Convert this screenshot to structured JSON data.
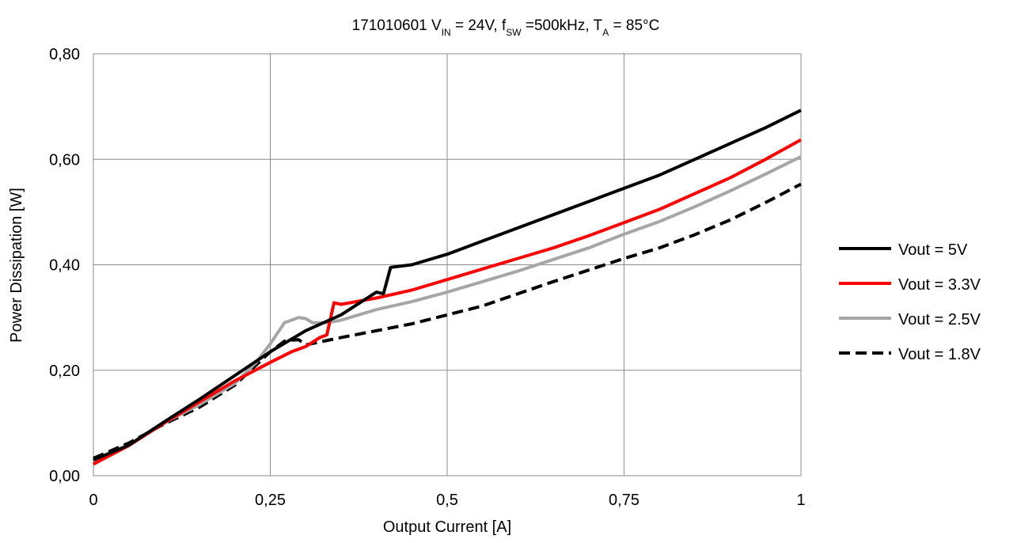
{
  "chart_data": {
    "type": "line",
    "title": {
      "prefix": "171010601   V",
      "vin_sub": "IN",
      "mid1": " = 24V, f",
      "fsw_sub": "SW",
      "mid2": " =500kHz, T",
      "ta_sub": "A",
      "suffix": " = 85°C"
    },
    "xlabel": "Output Current [A]",
    "ylabel": "Power Dissipation [W]",
    "xlim": [
      0,
      1
    ],
    "ylim": [
      0,
      0.8
    ],
    "x_ticks": [
      0,
      0.25,
      0.5,
      0.75,
      1
    ],
    "x_tick_labels": [
      "0",
      "0,25",
      "0,5",
      "0,75",
      "1"
    ],
    "y_ticks": [
      0,
      0.2,
      0.4,
      0.6,
      0.8
    ],
    "y_tick_labels": [
      "0,00",
      "0,20",
      "0,40",
      "0,60",
      "0,80"
    ],
    "grid": true,
    "legend_position": "right",
    "series": [
      {
        "name": "Vout = 5V",
        "color": "#000000",
        "dash": "solid",
        "x": [
          0,
          0.05,
          0.1,
          0.15,
          0.2,
          0.25,
          0.3,
          0.35,
          0.4,
          0.41,
          0.42,
          0.45,
          0.5,
          0.55,
          0.6,
          0.65,
          0.7,
          0.75,
          0.8,
          0.85,
          0.9,
          0.95,
          1.0
        ],
        "y": [
          0.03,
          0.058,
          0.102,
          0.145,
          0.19,
          0.235,
          0.275,
          0.305,
          0.348,
          0.345,
          0.395,
          0.4,
          0.42,
          0.445,
          0.47,
          0.495,
          0.52,
          0.545,
          0.57,
          0.6,
          0.63,
          0.66,
          0.693
        ]
      },
      {
        "name": "Vout = 3.3V",
        "color": "#ff0000",
        "dash": "solid",
        "x": [
          0,
          0.05,
          0.1,
          0.15,
          0.2,
          0.25,
          0.28,
          0.3,
          0.32,
          0.33,
          0.34,
          0.35,
          0.4,
          0.45,
          0.5,
          0.55,
          0.6,
          0.65,
          0.7,
          0.75,
          0.8,
          0.85,
          0.9,
          0.95,
          1.0
        ],
        "y": [
          0.022,
          0.057,
          0.1,
          0.14,
          0.18,
          0.215,
          0.235,
          0.245,
          0.262,
          0.267,
          0.328,
          0.325,
          0.337,
          0.352,
          0.372,
          0.392,
          0.412,
          0.432,
          0.455,
          0.48,
          0.505,
          0.535,
          0.565,
          0.6,
          0.637
        ]
      },
      {
        "name": "Vout = 2.5V",
        "color": "#a6a6a6",
        "dash": "solid",
        "x": [
          0,
          0.05,
          0.1,
          0.15,
          0.2,
          0.23,
          0.25,
          0.27,
          0.29,
          0.3,
          0.31,
          0.33,
          0.35,
          0.4,
          0.45,
          0.5,
          0.55,
          0.6,
          0.65,
          0.7,
          0.75,
          0.8,
          0.85,
          0.9,
          0.95,
          1.0
        ],
        "y": [
          0.025,
          0.058,
          0.1,
          0.135,
          0.175,
          0.215,
          0.25,
          0.29,
          0.3,
          0.298,
          0.29,
          0.29,
          0.295,
          0.315,
          0.33,
          0.348,
          0.368,
          0.388,
          0.41,
          0.432,
          0.458,
          0.482,
          0.51,
          0.54,
          0.572,
          0.605
        ]
      },
      {
        "name": "Vout = 1.8V",
        "color": "#000000",
        "dash": "dashed",
        "x": [
          0,
          0.05,
          0.1,
          0.15,
          0.2,
          0.25,
          0.27,
          0.28,
          0.29,
          0.3,
          0.35,
          0.4,
          0.45,
          0.5,
          0.55,
          0.6,
          0.65,
          0.7,
          0.75,
          0.8,
          0.85,
          0.9,
          0.95,
          1.0
        ],
        "y": [
          0.033,
          0.062,
          0.098,
          0.13,
          0.172,
          0.235,
          0.255,
          0.257,
          0.258,
          0.248,
          0.262,
          0.275,
          0.288,
          0.305,
          0.322,
          0.345,
          0.368,
          0.39,
          0.412,
          0.432,
          0.457,
          0.485,
          0.518,
          0.553
        ]
      }
    ]
  }
}
